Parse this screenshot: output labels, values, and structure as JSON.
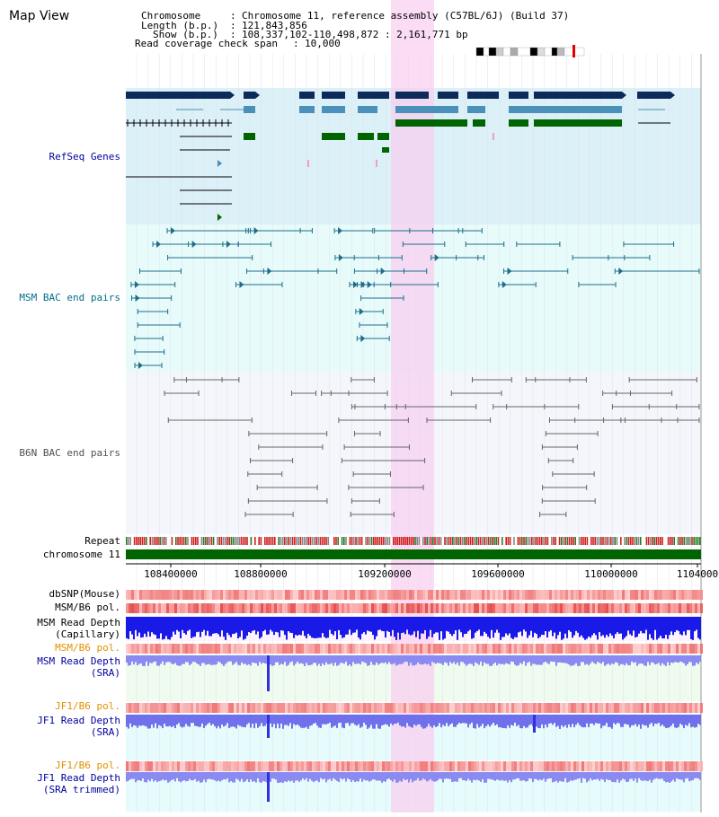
{
  "title": "Map View",
  "header": {
    "chromosome_label": "Chromosome",
    "chromosome_value": "Chromosome 11, reference assembly (C57BL/6J) (Build 37)",
    "length_label": "Length (b.p.)",
    "length_value": "121,843,856",
    "show_label": "Show (b.p.)",
    "show_value": "108,337,102-110,498,872 : 2,161,771 bp",
    "coverage_label": "Read coverage check span",
    "coverage_value": "10,000"
  },
  "tracks": {
    "refseq": "RefSeq Genes",
    "msm_bac": "MSM BAC end pairs",
    "b6n_bac": "B6N BAC end pairs",
    "repeat": "Repeat",
    "chromosome": "chromosome 11",
    "dbsnp": "dbSNP(Mouse)",
    "msm_b6_pol_1": "MSM/B6 pol.",
    "msm_read_depth_cap_1": "MSM Read Depth",
    "msm_read_depth_cap_2": "(Capillary)",
    "msm_b6_pol_2": "MSM/B6 pol.",
    "msm_read_depth_sra_1": "MSM Read Depth",
    "msm_read_depth_sra_2": "(SRA)",
    "jf1_b6_pol_1": "JF1/B6 pol.",
    "jf1_read_depth_sra_1": "JF1 Read Depth",
    "jf1_read_depth_sra_2": "(SRA)",
    "jf1_b6_pol_2": "JF1/B6 pol.",
    "jf1_read_depth_trim_1": "JF1 Read Depth",
    "jf1_read_depth_trim_2": "(SRA trimmed)"
  },
  "axis_ticks": [
    "108400000",
    "108800000",
    "109200000",
    "109600000",
    "110000000",
    "1104000"
  ],
  "colors": {
    "refseq_bg": "#dcf0f8",
    "msm_bg": "#e8fbfb",
    "b6n_bg": "#f4f6fb",
    "highlight": "#f8d0f0",
    "navy": "#0c2a5a",
    "steel": "#4a90b8",
    "green": "#006400",
    "teal": "#1d6e8a",
    "gray": "#666666",
    "label_blue": "#0000a0",
    "label_teal": "#006e8a",
    "label_orange": "#e09000",
    "label_gray": "#505050"
  }
}
